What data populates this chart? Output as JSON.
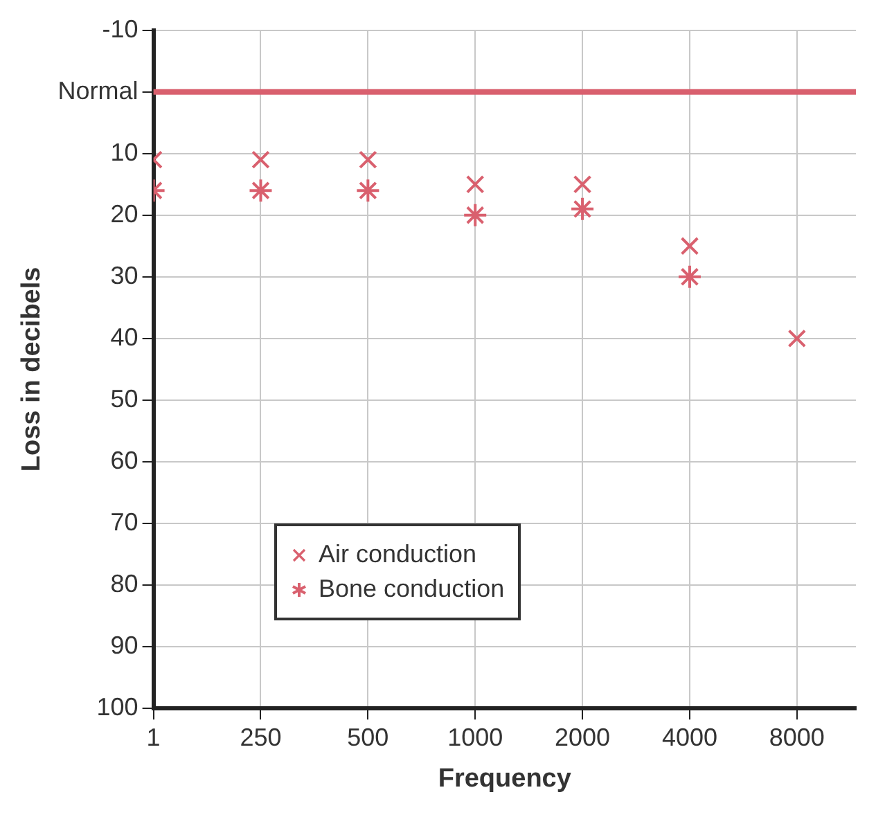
{
  "chart_data": {
    "type": "scatter",
    "xlabel": "Frequency",
    "ylabel": "Loss in decibels",
    "categories": [
      "1",
      "250",
      "500",
      "1000",
      "2000",
      "4000",
      "8000"
    ],
    "series": [
      {
        "name": "Air conduction",
        "color": "#d9606e",
        "marker": "cross",
        "values": [
          11,
          11,
          11,
          15,
          15,
          25,
          40
        ]
      },
      {
        "name": "Bone conduction",
        "color": "#d9606e",
        "values": [
          16,
          16,
          16,
          20,
          19,
          30,
          null
        ]
      }
    ],
    "ylim": [
      100,
      -10
    ],
    "yticks": [
      -10,
      {
        "value": 0,
        "label": "Normal"
      },
      10,
      20,
      30,
      40,
      50,
      60,
      70,
      80,
      90,
      100
    ],
    "ref_lines": [
      {
        "axis": "y",
        "value": 0,
        "color": "#d9606e"
      }
    ],
    "grid": true,
    "legend": "bottom left"
  }
}
